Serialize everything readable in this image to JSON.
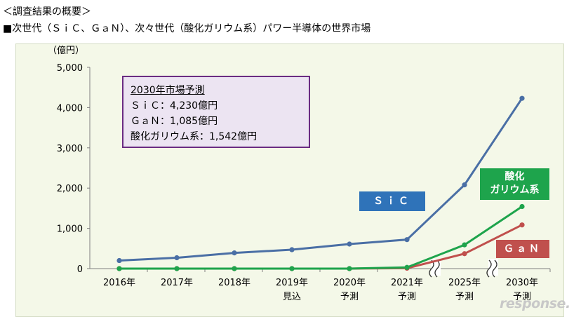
{
  "header": {
    "section_title": "＜調査結果の概要＞",
    "chart_heading": "■次世代（ＳｉＣ、ＧａＮ）、次々世代（酸化ガリウム系）パワー半導体の世界市場"
  },
  "note": {
    "title": "2030年市場予測",
    "line1": "ＳｉＣ：4,230億円",
    "line2": "ＧａＮ：1,085億円",
    "line3": "酸化ガリウム系：1,542億円"
  },
  "series_labels": {
    "sic": "ＳｉＣ",
    "gao_line1": "酸化",
    "gao_line2": "ガリウム系",
    "gan": "ＧａＮ"
  },
  "watermark": "response.",
  "colors": {
    "sic": "#4a6fa5",
    "gan": "#c0504d",
    "gao": "#1ea44c",
    "plot_bg": "#f4f8e8"
  },
  "chart_data": {
    "type": "line",
    "unit_label": "（億円）",
    "categories": [
      [
        "2016年"
      ],
      [
        "2017年"
      ],
      [
        "2018年"
      ],
      [
        "2019年",
        "見込"
      ],
      [
        "2020年",
        "予測"
      ],
      [
        "2021年",
        "予測"
      ],
      [
        "2025年",
        "予測"
      ],
      [
        "2030年",
        "予測"
      ]
    ],
    "y_ticks": [
      "0",
      "1,000",
      "2,000",
      "3,000",
      "4,000",
      "5,000"
    ],
    "ylim": [
      0,
      5000
    ],
    "grid": false,
    "axis_breaks_between": [
      [
        5,
        6
      ],
      [
        6,
        7
      ]
    ],
    "series": [
      {
        "name": "ＳｉＣ",
        "values": [
          200,
          270,
          390,
          470,
          610,
          720,
          2080,
          4230
        ]
      },
      {
        "name": "ＧａＮ",
        "values": [
          0,
          0,
          0,
          0,
          0,
          10,
          370,
          1085
        ]
      },
      {
        "name": "酸化ガリウム系",
        "values": [
          0,
          0,
          0,
          0,
          0,
          30,
          590,
          1542
        ]
      }
    ]
  }
}
